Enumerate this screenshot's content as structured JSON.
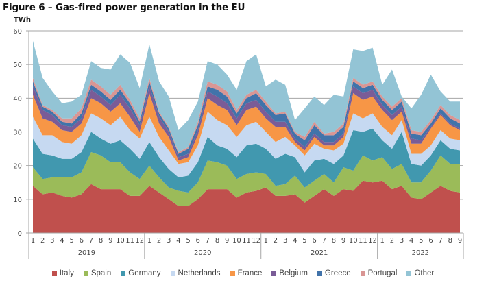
{
  "title": "Figure 6 – Gas-fired power generation in the EU",
  "chart_data": {
    "type": "area",
    "stacked": true,
    "title": "Figure 6 – Gas-fired power generation in the EU",
    "ylabel": "TWh",
    "xlabel": "",
    "ylim": [
      0,
      60
    ],
    "yticks": [
      0,
      10,
      20,
      30,
      40,
      50,
      60
    ],
    "grid": true,
    "legend_position": "bottom",
    "year_groups": [
      {
        "label": "2019",
        "months": [
          "1",
          "2",
          "3",
          "4",
          "5",
          "6",
          "7",
          "8",
          "9",
          "10",
          "11",
          "12"
        ]
      },
      {
        "label": "2020",
        "months": [
          "1",
          "2",
          "3",
          "4",
          "5",
          "6",
          "7",
          "8",
          "9",
          "10",
          "11",
          "12"
        ]
      },
      {
        "label": "2021",
        "months": [
          "1",
          "2",
          "3",
          "4",
          "5",
          "6",
          "7",
          "8",
          "9",
          "10",
          "11",
          "12"
        ]
      },
      {
        "label": "2022",
        "months": [
          "1",
          "2",
          "3",
          "4",
          "5",
          "6",
          "7",
          "8",
          "9"
        ]
      }
    ],
    "series": [
      {
        "name": "Italy",
        "color": "#c0504d",
        "values": [
          14,
          11.5,
          12,
          11,
          10.5,
          11.5,
          14.5,
          13,
          13,
          13,
          11,
          11,
          14,
          12,
          10,
          8,
          8,
          10,
          13,
          13,
          13,
          10.5,
          12,
          12.5,
          13.5,
          11,
          11,
          11.5,
          9,
          11,
          13,
          11,
          13,
          12.5,
          15.5,
          15,
          15.5,
          13,
          14,
          10.5,
          10,
          12,
          14,
          12.5,
          12
        ]
      },
      {
        "name": "Spain",
        "color": "#9bbb59",
        "values": [
          5.5,
          4.5,
          4.5,
          5.5,
          6,
          6.5,
          9.5,
          10,
          8,
          8,
          7,
          5,
          6,
          4.5,
          3.5,
          4.5,
          4,
          5,
          8.5,
          8,
          7,
          5.5,
          5.5,
          5.5,
          4,
          3,
          3.5,
          5.5,
          4.5,
          4.5,
          4.5,
          4,
          6.5,
          6,
          7.5,
          6.5,
          7,
          6,
          6.5,
          4.5,
          5,
          6.5,
          9,
          8,
          8.5
        ]
      },
      {
        "name": "Germany",
        "color": "#4198af",
        "values": [
          8.5,
          7.5,
          6.5,
          5.5,
          5.5,
          6,
          6,
          5,
          5.5,
          6.5,
          7,
          6,
          7,
          6,
          5.5,
          4,
          5,
          6,
          7,
          5,
          5,
          6.5,
          8.5,
          8.5,
          7.5,
          8,
          9,
          5.5,
          4.5,
          6,
          4.5,
          5.5,
          3.5,
          12,
          7,
          9.5,
          5,
          6,
          9.5,
          5.5,
          5,
          4.5,
          4.5,
          4.5,
          4
        ]
      },
      {
        "name": "Netherlands",
        "color": "#c6d9f1",
        "values": [
          6.5,
          5.5,
          6,
          5,
          4.5,
          5,
          5.5,
          6,
          5.5,
          7,
          5.5,
          6,
          7.5,
          6,
          5.5,
          4,
          4,
          5,
          7.5,
          7.5,
          7,
          6,
          6,
          6.5,
          5,
          5,
          5,
          3.5,
          5,
          5,
          3,
          4,
          3.5,
          5,
          4,
          4.5,
          4,
          4,
          3.5,
          3,
          3.5,
          3,
          3,
          3,
          3
        ]
      },
      {
        "name": "France",
        "color": "#f79646",
        "values": [
          6.5,
          5,
          4,
          3.5,
          3.5,
          3.5,
          4.5,
          4.5,
          4,
          4,
          4,
          2,
          7,
          4,
          4,
          1,
          1.5,
          3,
          4,
          4.5,
          4.5,
          3.5,
          4.5,
          4.5,
          4,
          4.5,
          3,
          1,
          1.5,
          2,
          1,
          1.5,
          2,
          6,
          5.5,
          5,
          5,
          4.5,
          2.5,
          3,
          3,
          5,
          4.5,
          4,
          3
        ]
      },
      {
        "name": "Belgium",
        "color": "#7a5c97",
        "values": [
          2.5,
          2.5,
          2,
          1.5,
          1.5,
          1.5,
          2.5,
          2,
          2,
          2.5,
          2.5,
          2,
          2,
          2,
          1.5,
          1,
          1,
          1.5,
          2,
          2.5,
          2,
          2,
          2,
          2,
          2,
          1.5,
          1.5,
          1,
          1,
          1,
          1,
          1,
          1,
          2,
          2,
          2,
          1.5,
          1.5,
          1.5,
          1.5,
          1,
          0.5,
          0.5,
          0.5,
          0.5
        ]
      },
      {
        "name": "Greece",
        "color": "#4173aa",
        "values": [
          1.5,
          1,
          1,
          1,
          1,
          1.5,
          1.5,
          1.5,
          1.5,
          1.5,
          1.5,
          1,
          1.5,
          1,
          1,
          1,
          1.5,
          1.5,
          1.5,
          2,
          2,
          1.5,
          1.5,
          2,
          2,
          2,
          2.5,
          1.5,
          2,
          2.5,
          2,
          2,
          2,
          1.5,
          1.5,
          1.5,
          1.5,
          1.5,
          1.5,
          1.5,
          1.5,
          1,
          1.5,
          1.5,
          1.5
        ]
      },
      {
        "name": "Portugal",
        "color": "#d99694",
        "values": [
          1,
          0.5,
          0.5,
          1,
          1.5,
          1.5,
          1.5,
          1.5,
          1.5,
          1.5,
          1,
          1,
          1,
          0.5,
          0.5,
          0.5,
          0.5,
          1,
          1.5,
          1.5,
          1.5,
          1,
          1,
          1,
          1,
          0.5,
          0.5,
          0.5,
          1,
          1,
          0.5,
          1,
          1,
          1,
          1,
          1,
          1,
          1,
          1,
          1,
          1,
          1,
          1,
          1,
          1
        ]
      },
      {
        "name": "Other",
        "color": "#93c4d5",
        "values": [
          11,
          8,
          5.5,
          4.5,
          5,
          4,
          5.5,
          5.5,
          7.5,
          9,
          11,
          9,
          10,
          9,
          9,
          6.5,
          8,
          6,
          6,
          6,
          5,
          6,
          10,
          10.5,
          4.5,
          10,
          8,
          3.5,
          8.5,
          7.5,
          8.5,
          11,
          8,
          8.5,
          10,
          10,
          3.5,
          11,
          0.5,
          6.5,
          11,
          13.5,
          4,
          4,
          5.5
        ]
      }
    ]
  }
}
